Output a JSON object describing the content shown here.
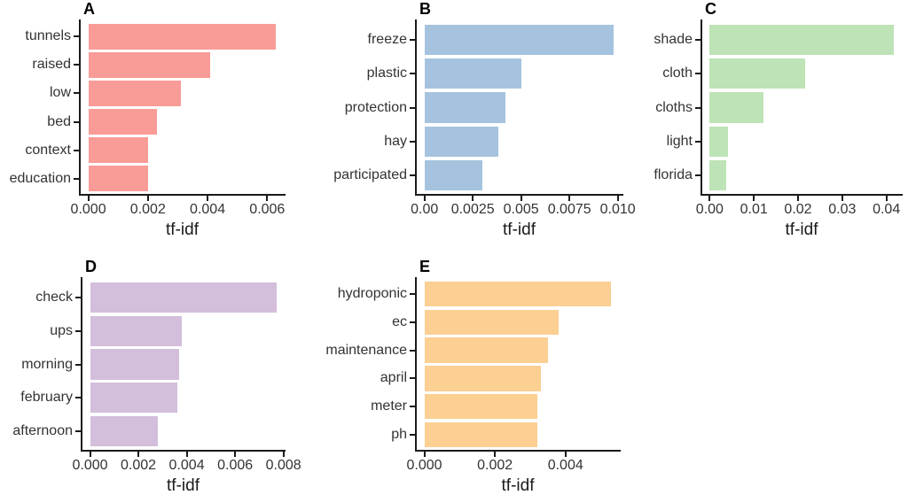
{
  "figure": {
    "background": "#ffffff",
    "panel_count": 5
  },
  "chart_data": [
    {
      "type": "bar",
      "orientation": "horizontal",
      "title": "A",
      "categories": [
        "tunnels",
        "raised",
        "low",
        "bed",
        "context",
        "education"
      ],
      "values": [
        0.0063,
        0.0041,
        0.0031,
        0.0023,
        0.002,
        0.002
      ],
      "xlabel": "tf-idf",
      "xlim": [
        0,
        0.0066
      ],
      "xticks": [
        0,
        0.002,
        0.004,
        0.006
      ],
      "xtick_labels": [
        "0.000",
        "0.002",
        "0.004",
        "0.006"
      ],
      "bar_color": "#F99B97",
      "grid": false,
      "legend": false
    },
    {
      "type": "bar",
      "orientation": "horizontal",
      "title": "B",
      "categories": [
        "freeze",
        "plastic",
        "protection",
        "hay",
        "participated"
      ],
      "values": [
        0.0098,
        0.005,
        0.0042,
        0.0038,
        0.003
      ],
      "xlabel": "tf-idf",
      "xlim": [
        0,
        0.0103
      ],
      "xticks": [
        0,
        0.0025,
        0.005,
        0.0075,
        0.01
      ],
      "xtick_labels": [
        "0.00",
        "0.0025",
        "0.005",
        "0.0075",
        "0.010"
      ],
      "bar_color": "#A5C3DF",
      "grid": false,
      "legend": false
    },
    {
      "type": "bar",
      "orientation": "horizontal",
      "title": "C",
      "categories": [
        "shade",
        "cloth",
        "cloths",
        "light",
        "florida"
      ],
      "values": [
        0.0416,
        0.0216,
        0.0121,
        0.0042,
        0.0038
      ],
      "xlabel": "tf-idf",
      "xlim": [
        0,
        0.0437
      ],
      "xticks": [
        0,
        0.01,
        0.02,
        0.03,
        0.04
      ],
      "xtick_labels": [
        "0.00",
        "0.01",
        "0.02",
        "0.03",
        "0.04"
      ],
      "bar_color": "#BEE3B6",
      "grid": false,
      "legend": false
    },
    {
      "type": "bar",
      "orientation": "horizontal",
      "title": "D",
      "categories": [
        "check",
        "ups",
        "morning",
        "february",
        "afternoon"
      ],
      "values": [
        0.0077,
        0.0038,
        0.0037,
        0.0036,
        0.0028
      ],
      "xlabel": "tf-idf",
      "xlim": [
        0,
        0.0081
      ],
      "xticks": [
        0,
        0.002,
        0.004,
        0.006,
        0.008
      ],
      "xtick_labels": [
        "0.000",
        "0.002",
        "0.004",
        "0.006",
        "0.008"
      ],
      "bar_color": "#D3BEDB",
      "grid": false,
      "legend": false
    },
    {
      "type": "bar",
      "orientation": "horizontal",
      "title": "E",
      "categories": [
        "hydroponic",
        "ec",
        "maintenance",
        "april",
        "meter",
        "ph"
      ],
      "values": [
        0.0053,
        0.0038,
        0.0035,
        0.0033,
        0.0032,
        0.0032
      ],
      "xlabel": "tf-idf",
      "xlim": [
        0,
        0.0056
      ],
      "xticks": [
        0,
        0.002,
        0.004
      ],
      "xtick_labels": [
        "0.000",
        "0.002",
        "0.004"
      ],
      "bar_color": "#FCCF93",
      "grid": false,
      "legend": false
    }
  ]
}
